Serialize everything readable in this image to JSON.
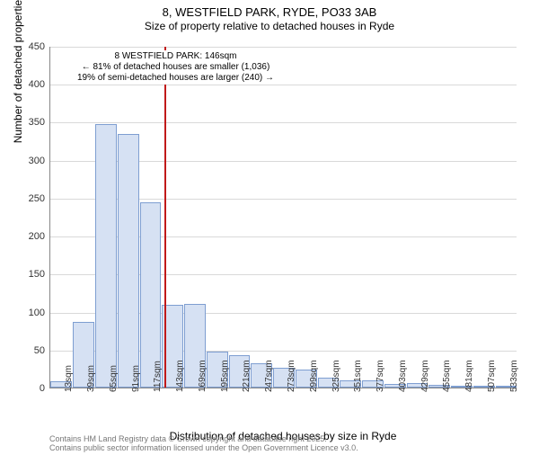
{
  "title": "8, WESTFIELD PARK, RYDE, PO33 3AB",
  "subtitle": "Size of property relative to detached houses in Ryde",
  "ylabel": "Number of detached properties",
  "xlabel": "Distribution of detached houses by size in Ryde",
  "footer_line1": "Contains HM Land Registry data © Crown copyright and database right 2025.",
  "footer_line2": "Contains public sector information licensed under the Open Government Licence v3.0.",
  "chart": {
    "type": "histogram",
    "ymax": 450,
    "ytick_step": 50,
    "yticks": [
      0,
      50,
      100,
      150,
      200,
      250,
      300,
      350,
      400,
      450
    ],
    "bar_fill": "#d6e1f3",
    "bar_stroke": "#7e9ed1",
    "grid_color": "#d9d9d9",
    "background_color": "#ffffff",
    "marker_color": "#c11a1a",
    "marker_x_index": 5.12,
    "x_labels": [
      "13sqm",
      "39sqm",
      "65sqm",
      "91sqm",
      "117sqm",
      "143sqm",
      "169sqm",
      "195sqm",
      "221sqm",
      "247sqm",
      "273sqm",
      "299sqm",
      "325sqm",
      "351sqm",
      "377sqm",
      "403sqm",
      "429sqm",
      "455sqm",
      "481sqm",
      "507sqm",
      "533sqm"
    ],
    "values": [
      8,
      87,
      347,
      334,
      244,
      109,
      110,
      47,
      43,
      32,
      26,
      24,
      13,
      9,
      9,
      5,
      6,
      3,
      0,
      2,
      2
    ],
    "annotation_line1": "8 WESTFIELD PARK: 146sqm",
    "annotation_line2": "← 81% of detached houses are smaller (1,036)",
    "annotation_line3": "19% of semi-detached houses are larger (240) →"
  }
}
